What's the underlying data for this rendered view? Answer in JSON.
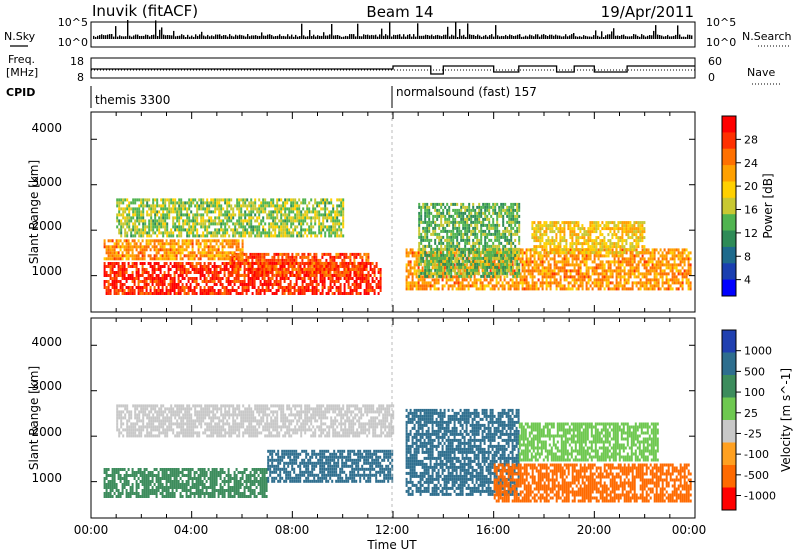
{
  "header": {
    "station": "Inuvik (fitACF)",
    "beam": "Beam 14",
    "date": "19/Apr/2011"
  },
  "strips": {
    "nsky_label": "N.Sky",
    "nsky_ticks": [
      "10^5",
      "10^0"
    ],
    "nsearch_label": "N.Search",
    "nsearch_ticks": [
      "10^5",
      "10^0"
    ],
    "freq_label_1": "Freq.",
    "freq_label_2": "[MHz]",
    "freq_ticks": [
      "18",
      "8"
    ],
    "nave_label": "Nave",
    "nave_ticks": [
      "60",
      "0"
    ],
    "cpid_label": "CPID",
    "cpid_segments": [
      {
        "text": "themis 3300",
        "start_hour": 0
      },
      {
        "text": "normalsound (fast) 157",
        "start_hour": 12
      }
    ]
  },
  "panels": {
    "range_axis_title": "Slant Range [km]",
    "range_ticks": [
      "4000",
      "3000",
      "2000",
      "1000"
    ],
    "time_ticks": [
      "00:00",
      "04:00",
      "08:00",
      "12:00",
      "16:00",
      "20:00",
      "00:00"
    ],
    "time_axis_title": "Time UT"
  },
  "colorbars": {
    "power": {
      "title": "Power [dB]",
      "ticks": [
        "28",
        "24",
        "20",
        "16",
        "12",
        "8",
        "4"
      ],
      "colors": [
        "#ff0000",
        "#ff3000",
        "#ff7000",
        "#ffa000",
        "#ffd000",
        "#c8c832",
        "#50b450",
        "#2e8b57",
        "#1e6a8c",
        "#1a3fb0",
        "#0000ff"
      ]
    },
    "velocity": {
      "title": "Velocity [m s^-1]",
      "ticks": [
        "1000",
        "500",
        "100",
        "25",
        "-25",
        "-100",
        "-500",
        "-1000"
      ],
      "colors": [
        "#2040b0",
        "#2e6e8e",
        "#3c8c5c",
        "#6ec850",
        "#c8c8c8",
        "#ffa020",
        "#ff6a00",
        "#ff0000"
      ]
    }
  },
  "chart_data": {
    "type": "heatmap",
    "x_range_hours": [
      0,
      24
    ],
    "y_range_km": [
      200,
      4600
    ],
    "panels": [
      {
        "name": "Power [dB]",
        "echo_bands": [
          {
            "t_start": 0.5,
            "t_end": 11.5,
            "range_km": [
              600,
              1300
            ],
            "power_db": 28
          },
          {
            "t_start": 5.5,
            "t_end": 11.0,
            "range_km": [
              1000,
              1500
            ],
            "power_db": 26
          },
          {
            "t_start": 1.0,
            "t_end": 10.0,
            "range_km": [
              1900,
              2700
            ],
            "power_db": 14
          },
          {
            "t_start": 0.5,
            "t_end": 6.0,
            "range_km": [
              1400,
              1800
            ],
            "power_db": 22
          },
          {
            "t_start": 12.5,
            "t_end": 23.8,
            "range_km": [
              700,
              1600
            ],
            "power_db": 22
          },
          {
            "t_start": 13.0,
            "t_end": 17.0,
            "range_km": [
              1000,
              2600
            ],
            "power_db": 12
          },
          {
            "t_start": 17.5,
            "t_end": 22.0,
            "range_km": [
              1500,
              2200
            ],
            "power_db": 18
          }
        ]
      },
      {
        "name": "Velocity [m s^-1]",
        "echo_bands": [
          {
            "t_start": 0.5,
            "t_end": 7.0,
            "range_km": [
              700,
              1300
            ],
            "velocity": 100
          },
          {
            "t_start": 7.0,
            "t_end": 12.0,
            "range_km": [
              1000,
              1700
            ],
            "velocity": 500
          },
          {
            "t_start": 1.0,
            "t_end": 12.0,
            "range_km": [
              2000,
              2700
            ],
            "velocity": -25
          },
          {
            "t_start": 12.5,
            "t_end": 17.0,
            "range_km": [
              700,
              2600
            ],
            "velocity": 500
          },
          {
            "t_start": 16.0,
            "t_end": 23.8,
            "range_km": [
              600,
              1400
            ],
            "velocity": -500
          },
          {
            "t_start": 17.0,
            "t_end": 22.5,
            "range_km": [
              1500,
              2300
            ],
            "velocity": 25
          }
        ]
      }
    ]
  }
}
